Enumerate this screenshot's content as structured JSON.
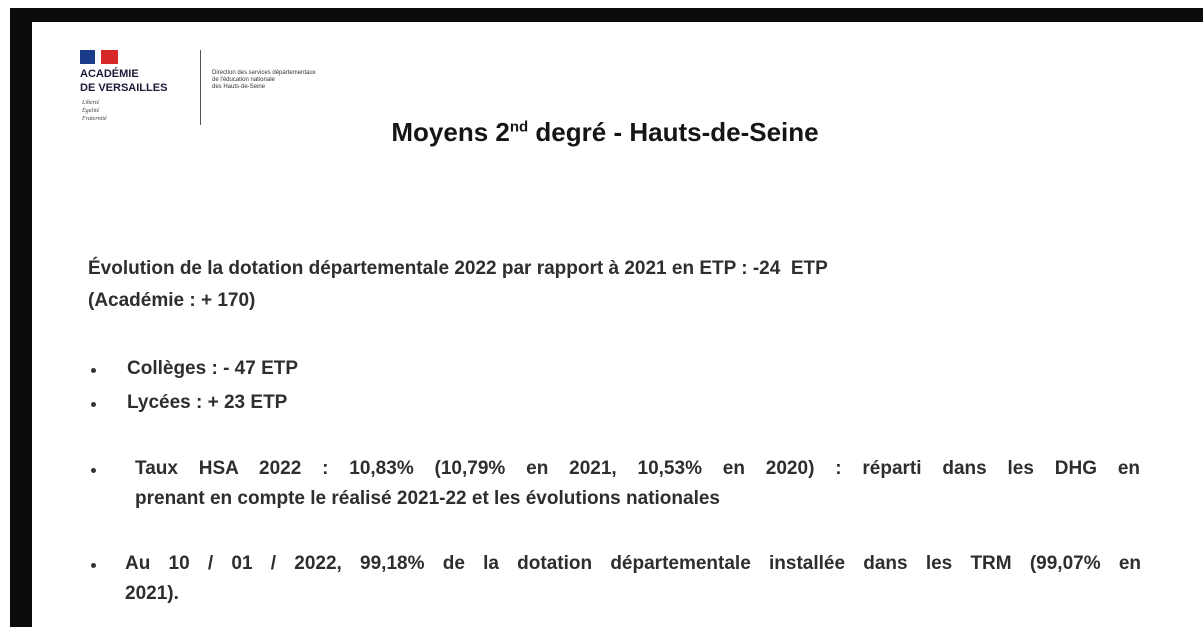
{
  "header": {
    "logo": {
      "lines": [
        "ACADÉMIE",
        "DE VERSAILLES"
      ],
      "motto": [
        "Liberté",
        "Égalité",
        "Fraternité"
      ]
    },
    "direction": [
      "Direction des services départementaux",
      "de l'éducation nationale",
      "des Hauts-de-Seine"
    ]
  },
  "title": {
    "main": "Moyens 2",
    "sup": "nd",
    "rest": " degré - Hauts-de-Seine"
  },
  "intro": [
    "Évolution de la dotation départementale 2022 par rapport à 2021 en ETP : -24  ETP",
    "(Académie : + 170)"
  ],
  "bullets": [
    {
      "lines": [
        "Collèges : - 47 ETP"
      ]
    },
    {
      "lines": [
        "Lycées : + 23 ETP"
      ]
    },
    {
      "lines": [
        "Taux HSA 2022 : 10,83% (10,79% en 2021, 10,53% en 2020) : réparti dans les DHG en",
        "prenant en compte le réalisé 2021-22 et les évolutions nationales"
      ]
    },
    {
      "lines": [
        "Au 10 / 01 / 2022, 99,18% de la dotation départementale installée dans les TRM (99,07% en",
        "2021)."
      ]
    }
  ]
}
